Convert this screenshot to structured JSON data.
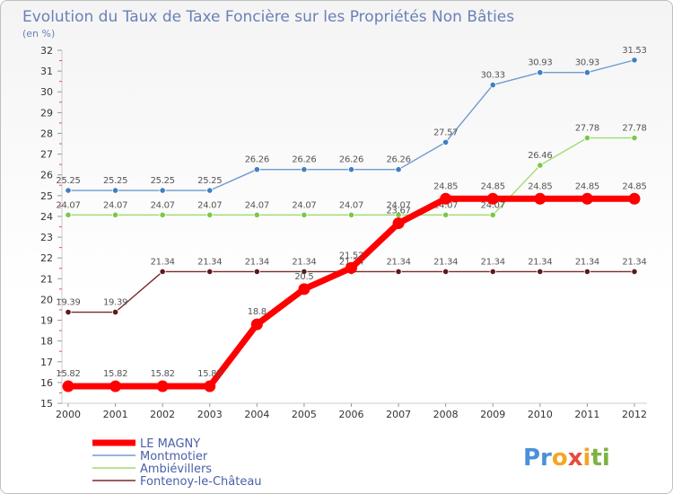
{
  "chart_data": {
    "type": "line",
    "title": "Evolution du Taux de Taxe Foncière sur les Propriétés Non Bâties",
    "ylabel": "(en %)",
    "xlabel": "",
    "ylim": [
      15,
      32
    ],
    "yticks": [
      15,
      16,
      17,
      18,
      19,
      20,
      21,
      22,
      23,
      24,
      25,
      26,
      27,
      28,
      29,
      30,
      31,
      32
    ],
    "x": [
      "2000",
      "2001",
      "2002",
      "2003",
      "2004",
      "2005",
      "2006",
      "2007",
      "2008",
      "2009",
      "2010",
      "2011",
      "2012"
    ],
    "grid": false,
    "legend_position": "bottom-left",
    "series": [
      {
        "name": "Montmotier",
        "color": "#6e9bd1",
        "marker": "#3f7fc2",
        "values": [
          25.25,
          25.25,
          25.25,
          25.25,
          26.26,
          26.26,
          26.26,
          26.26,
          27.57,
          30.33,
          30.93,
          30.93,
          31.53
        ],
        "labels": [
          "25.25",
          "25.25",
          "25.25",
          "25.25",
          "26.26",
          "26.26",
          "26.26",
          "26.26",
          "27.57",
          "30.33",
          "30.93",
          "30.93",
          "31.53"
        ]
      },
      {
        "name": "Ambiévillers",
        "color": "#9fdb6f",
        "marker": "#7cc74a",
        "values": [
          24.07,
          24.07,
          24.07,
          24.07,
          24.07,
          24.07,
          24.07,
          24.07,
          24.07,
          24.07,
          26.46,
          27.78,
          27.78
        ],
        "labels": [
          "24.07",
          "24.07",
          "24.07",
          "24.07",
          "24.07",
          "24.07",
          "24.07",
          "24.07",
          "24.07",
          "24.07",
          "26.46",
          "27.78",
          "27.78"
        ]
      },
      {
        "name": "Fontenoy-le-Château",
        "color": "#7a2a2a",
        "marker": "#5c1a1a",
        "values": [
          19.39,
          19.39,
          21.34,
          21.34,
          21.34,
          21.34,
          21.34,
          21.34,
          21.34,
          21.34,
          21.34,
          21.34,
          21.34
        ],
        "labels": [
          "19.39",
          "19.39",
          "21.34",
          "21.34",
          "21.34",
          "21.34",
          "21.34",
          "21.34",
          "21.34",
          "21.34",
          "21.34",
          "21.34",
          "21.34"
        ]
      },
      {
        "name": "LE MAGNY",
        "color": "#ff0000",
        "marker": "#ff0000",
        "values": [
          15.82,
          15.82,
          15.82,
          15.82,
          18.8,
          20.5,
          21.52,
          23.67,
          24.85,
          24.85,
          24.85,
          24.85,
          24.85
        ],
        "labels": [
          "15.82",
          "15.82",
          "15.82",
          "15.82",
          "18.8",
          "20.5",
          "21.52",
          "23.67",
          "24.85",
          "24.85",
          "24.85",
          "24.85",
          "24.85"
        ]
      }
    ],
    "legend": [
      "LE MAGNY",
      "Montmotier",
      "Ambiévillers",
      "Fontenoy-le-Château"
    ]
  },
  "branding": {
    "logo_parts": [
      "Pr",
      "o",
      "x",
      "i",
      "ti"
    ],
    "logo_colors": [
      "#4a90d9",
      "#f5a623",
      "#e74c3c",
      "#f5a623",
      "#7cb342"
    ]
  }
}
